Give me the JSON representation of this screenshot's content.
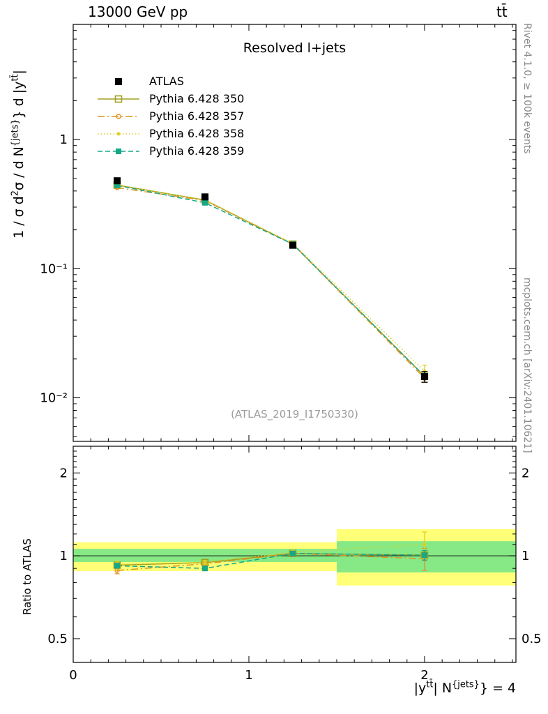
{
  "header": {
    "left": "13000 GeV pp",
    "right": "tt̄"
  },
  "labels": {
    "title": "Resolved l+jets",
    "watermark": "(ATLAS_2019_I1750330)",
    "ylabel_ratio": "Ratio to ATLAS",
    "ylabel_main_runs": [
      {
        "t": "1 / σ d"
      },
      {
        "t": "2",
        "sup": true
      },
      {
        "t": "σ / d N"
      },
      {
        "t": "{jets}",
        "sup": true
      },
      {
        "t": "} d |y"
      },
      {
        "t": "tt̄",
        "sup": true
      },
      {
        "t": "|"
      }
    ],
    "xlabel_runs": [
      {
        "t": "|y"
      },
      {
        "t": "tt̄",
        "sup": true
      },
      {
        "t": "| N"
      },
      {
        "t": "{jets}",
        "sup": true
      },
      {
        "t": "} = 4"
      }
    ]
  },
  "side_labels": {
    "top_right": "Rivet 4.1.0, ≥ 100k events",
    "bottom_right": "mcplots.cern.ch [arXiv:2401.10621]"
  },
  "chart_data": {
    "type": "line",
    "title": "Resolved l+jets",
    "xlabel": "|y^{tt̄}| N^{jets}} = 4",
    "ylabel": "1 / σ d²σ / d N^{jets}} d |y^{tt̄}|",
    "yscale": "log",
    "grid": false,
    "legend_position": "top-left",
    "x": [
      0.25,
      0.75,
      1.25,
      2.0
    ],
    "xlim": [
      0,
      2.52
    ],
    "x_major": [
      0,
      1,
      2
    ],
    "x_major_labels": [
      "0",
      "1",
      "2"
    ],
    "x_minor_step": 0.1,
    "main_axis": {
      "ylim": [
        0.0046,
        7.8
      ],
      "ticks": [
        {
          "v": 1,
          "label": "1"
        },
        {
          "v": 0.1,
          "label": "10⁻¹"
        },
        {
          "v": 0.01,
          "label": "10⁻²"
        }
      ]
    },
    "ratio_axis": {
      "ylim": [
        0.41,
        2.5
      ],
      "ticks": [
        {
          "v": 2,
          "label": "2"
        },
        {
          "v": 1,
          "label": "1"
        },
        {
          "v": 0.5,
          "label": "0.5"
        }
      ],
      "minor": [
        0.4,
        0.6,
        0.7,
        0.8,
        0.9,
        1.1,
        1.2,
        1.3,
        1.4,
        1.5,
        1.6,
        1.7,
        1.8,
        1.9,
        2.1,
        2.2,
        2.3,
        2.4
      ],
      "ref": 1.0
    },
    "bands": [
      {
        "x0": 0.0,
        "x1": 1.5,
        "yellow": [
          0.88,
          1.12
        ],
        "green": [
          0.95,
          1.06
        ]
      },
      {
        "x0": 1.5,
        "x1": 2.52,
        "yellow": [
          0.78,
          1.25
        ],
        "green": [
          0.87,
          1.13
        ]
      }
    ],
    "band_colors": {
      "yellow": "#ffff78",
      "green": "#86e986",
      "ref_line": "#111111"
    },
    "series": [
      {
        "name": "ATLAS",
        "color": "#000000",
        "line": "none",
        "marker": "square-filled",
        "msize": 10,
        "values": [
          0.48,
          0.36,
          0.152,
          0.0146
        ],
        "yerr": [
          0.02,
          0.015,
          0.006,
          0.0014
        ],
        "ratio": null,
        "ratio_err": null
      },
      {
        "name": "Pythia 6.428 350",
        "color": "#a0a020",
        "line": "solid",
        "marker": "square-open",
        "msize": 9,
        "values": [
          0.444,
          0.34,
          0.155,
          0.0147
        ],
        "yerr": [
          0.006,
          0.005,
          0.003,
          0.0008
        ],
        "ratio": [
          0.925,
          0.945,
          1.02,
          1.005
        ],
        "ratio_err": [
          0.015,
          0.012,
          0.012,
          0.04
        ]
      },
      {
        "name": "Pythia 6.428 357",
        "color": "#dd9522",
        "line": "dashdot",
        "marker": "circle-open",
        "msize": 6,
        "values": [
          0.425,
          0.337,
          0.155,
          0.0142
        ],
        "yerr": [
          0.008,
          0.006,
          0.003,
          0.001
        ],
        "ratio": [
          0.885,
          0.935,
          1.02,
          0.975
        ],
        "ratio_err": [
          0.025,
          0.015,
          0.015,
          0.09
        ]
      },
      {
        "name": "Pythia 6.428 358",
        "color": "#ddd020",
        "line": "dotted",
        "marker": "circle-filled",
        "msize": 5,
        "values": [
          0.446,
          0.341,
          0.157,
          0.0161
        ],
        "yerr": [
          0.008,
          0.006,
          0.003,
          0.0018
        ],
        "ratio": [
          0.93,
          0.947,
          1.031,
          1.1
        ],
        "ratio_err": [
          0.025,
          0.015,
          0.015,
          0.12
        ]
      },
      {
        "name": "Pythia 6.428 359",
        "color": "#16a885",
        "line": "dashed",
        "marker": "square-filled",
        "msize": 8,
        "values": [
          0.442,
          0.324,
          0.155,
          0.0147
        ],
        "yerr": [
          0.006,
          0.005,
          0.003,
          0.0008
        ],
        "ratio": [
          0.92,
          0.9,
          1.02,
          1.005
        ],
        "ratio_err": [
          0.015,
          0.012,
          0.012,
          0.04
        ]
      }
    ]
  }
}
